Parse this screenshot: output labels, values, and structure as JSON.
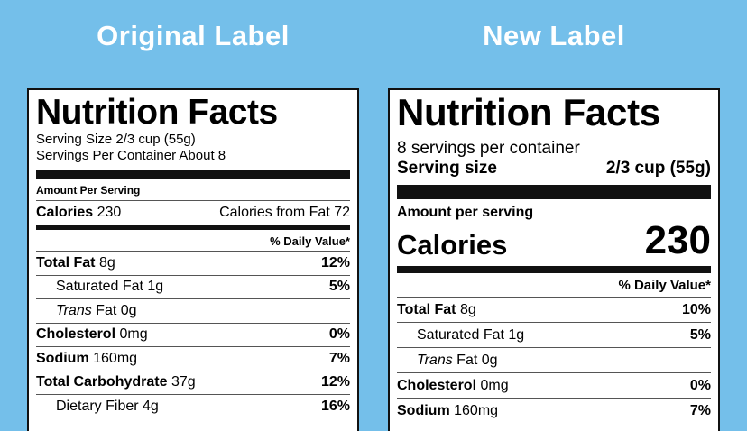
{
  "headings": {
    "left": "Original Label",
    "right": "New Label"
  },
  "old_label": {
    "title": "Nutrition Facts",
    "serving_size": "Serving Size 2/3 cup (55g)",
    "servings_per_container": "Servings Per Container About 8",
    "amount_per_serving": "Amount Per Serving",
    "calories_label": "Calories",
    "calories_value": "230",
    "calories_from_fat": "Calories from Fat 72",
    "daily_value_header": "% Daily Value*",
    "rows": [
      {
        "label": "Total Fat",
        "amount": "8g",
        "pct": "12%",
        "bold": true,
        "indent": false,
        "italic": false
      },
      {
        "label": "Saturated Fat",
        "amount": "1g",
        "pct": "5%",
        "bold": false,
        "indent": true,
        "italic": false
      },
      {
        "label": "Trans",
        "amount": "Fat 0g",
        "pct": "",
        "bold": false,
        "indent": true,
        "italic": true
      },
      {
        "label": "Cholesterol",
        "amount": "0mg",
        "pct": "0%",
        "bold": true,
        "indent": false,
        "italic": false
      },
      {
        "label": "Sodium",
        "amount": "160mg",
        "pct": "7%",
        "bold": true,
        "indent": false,
        "italic": false
      },
      {
        "label": "Total Carbohydrate",
        "amount": "37g",
        "pct": "12%",
        "bold": true,
        "indent": false,
        "italic": false
      },
      {
        "label": "Dietary Fiber",
        "amount": "4g",
        "pct": "16%",
        "bold": false,
        "indent": true,
        "italic": false
      }
    ]
  },
  "new_label": {
    "title": "Nutrition Facts",
    "servings_per_container": "8 servings per container",
    "serving_size_label": "Serving size",
    "serving_size_value": "2/3 cup (55g)",
    "amount_per_serving": "Amount per serving",
    "calories_label": "Calories",
    "calories_value": "230",
    "daily_value_header": "% Daily Value*",
    "rows": [
      {
        "label": "Total Fat",
        "amount": "8g",
        "pct": "10%",
        "bold": true,
        "indent": false,
        "italic": false
      },
      {
        "label": "Saturated Fat",
        "amount": "1g",
        "pct": "5%",
        "bold": false,
        "indent": true,
        "italic": false
      },
      {
        "label": "Trans",
        "amount": "Fat 0g",
        "pct": "",
        "bold": false,
        "indent": true,
        "italic": true
      },
      {
        "label": "Cholesterol",
        "amount": "0mg",
        "pct": "0%",
        "bold": true,
        "indent": false,
        "italic": false
      },
      {
        "label": "Sodium",
        "amount": "160mg",
        "pct": "7%",
        "bold": true,
        "indent": false,
        "italic": false
      }
    ]
  }
}
